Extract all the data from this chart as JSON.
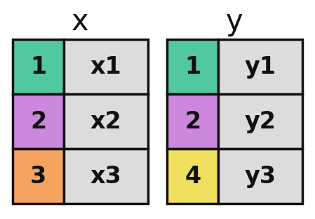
{
  "title_x": "x",
  "title_y": "y",
  "table_x": {
    "keys": [
      "1",
      "2",
      "3"
    ],
    "values": [
      "x1",
      "x2",
      "x3"
    ],
    "key_colors": [
      "#52c8a0",
      "#cc88dd",
      "#f4a460"
    ]
  },
  "table_y": {
    "keys": [
      "1",
      "2",
      "4"
    ],
    "values": [
      "y1",
      "y2",
      "y3"
    ],
    "key_colors": [
      "#52c8a0",
      "#cc88dd",
      "#f0e060"
    ]
  },
  "cell_bg": "#dcdcdc",
  "border_color": "#111111",
  "text_color": "#111111",
  "title_fontsize": 30,
  "cell_fontsize": 24,
  "background_color": "#ffffff",
  "border_lw": 2.5
}
